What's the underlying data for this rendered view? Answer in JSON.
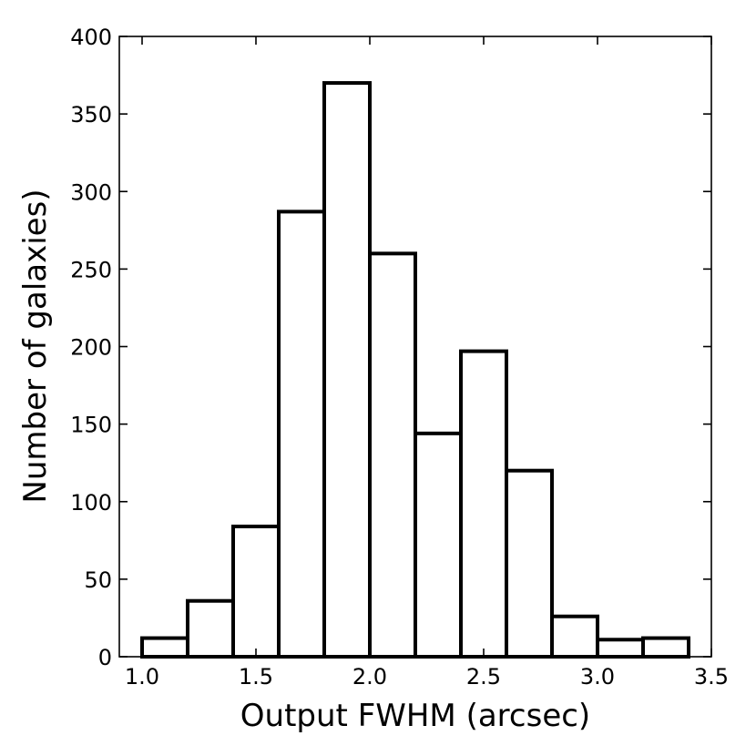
{
  "chart_data": {
    "type": "bar",
    "title": "",
    "xlabel": "Output FWHM (arcsec)",
    "ylabel": "Number of galaxies)",
    "xlim": [
      0.9,
      3.5
    ],
    "ylim": [
      0,
      400
    ],
    "xticks": [
      "1.0",
      "1.5",
      "2.0",
      "2.5",
      "3.0",
      "3.5"
    ],
    "yticks": [
      "0",
      "50",
      "100",
      "150",
      "200",
      "250",
      "300",
      "350",
      "400"
    ],
    "bin_edges": [
      1.0,
      1.2,
      1.4,
      1.6,
      1.8,
      2.0,
      2.2,
      2.4,
      2.6,
      2.8,
      3.0,
      3.2,
      3.4
    ],
    "values": [
      12,
      36,
      84,
      287,
      370,
      260,
      144,
      197,
      120,
      26,
      11,
      12
    ],
    "grid": false,
    "colors": {
      "bar_fill": "#ffffff",
      "bar_edge": "#000000"
    }
  }
}
